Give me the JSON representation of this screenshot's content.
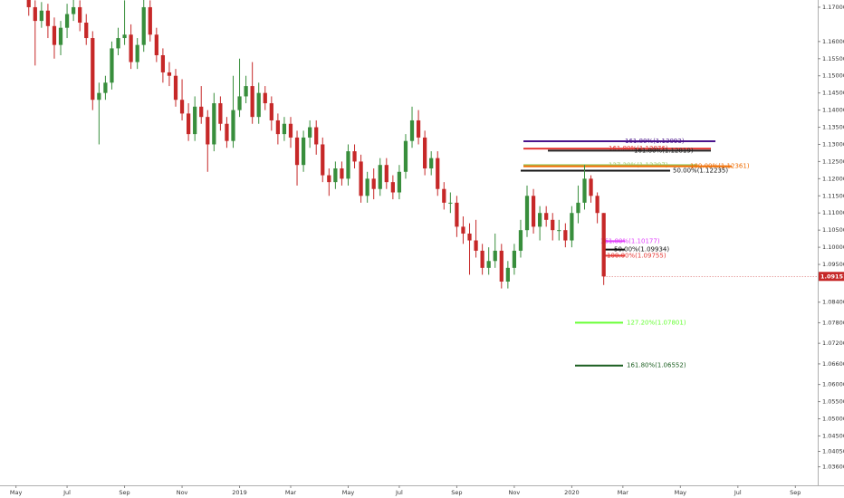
{
  "chart_data": {
    "type": "candlestick",
    "up_color": "#388e3c",
    "down_color": "#c62828",
    "xlim": [
      -4.5,
      123.5
    ],
    "ylim": [
      1.0306,
      1.1721
    ],
    "xticks": [
      {
        "value": -2,
        "label": "May"
      },
      {
        "value": 6,
        "label": "Jul"
      },
      {
        "value": 15,
        "label": "Sep"
      },
      {
        "value": 24,
        "label": "Nov"
      },
      {
        "value": 33,
        "label": "2019"
      },
      {
        "value": 41,
        "label": "Mar"
      },
      {
        "value": 50,
        "label": "May"
      },
      {
        "value": 58,
        "label": "Jul"
      },
      {
        "value": 67,
        "label": "Sep"
      },
      {
        "value": 76,
        "label": "Nov"
      },
      {
        "value": 85,
        "label": "2020"
      },
      {
        "value": 93,
        "label": "Mar"
      },
      {
        "value": 102,
        "label": "May"
      },
      {
        "value": 111,
        "label": "Jul"
      },
      {
        "value": 120,
        "label": "Sep"
      }
    ],
    "yticks": [
      {
        "value": 1.17,
        "label": "1.17000"
      },
      {
        "value": 1.16,
        "label": "1.16000"
      },
      {
        "value": 1.155,
        "label": "1.15500"
      },
      {
        "value": 1.15,
        "label": "1.15000"
      },
      {
        "value": 1.145,
        "label": "1.14500"
      },
      {
        "value": 1.14,
        "label": "1.14000"
      },
      {
        "value": 1.135,
        "label": "1.13500"
      },
      {
        "value": 1.13,
        "label": "1.13000"
      },
      {
        "value": 1.125,
        "label": "1.12500"
      },
      {
        "value": 1.12,
        "label": "1.12000"
      },
      {
        "value": 1.115,
        "label": "1.11500"
      },
      {
        "value": 1.11,
        "label": "1.11000"
      },
      {
        "value": 1.105,
        "label": "1.10500"
      },
      {
        "value": 1.1,
        "label": "1.10000"
      },
      {
        "value": 1.095,
        "label": "1.09500"
      },
      {
        "value": 1.084,
        "label": "1.08400"
      },
      {
        "value": 1.078,
        "label": "1.07800"
      },
      {
        "value": 1.072,
        "label": "1.07200"
      },
      {
        "value": 1.066,
        "label": "1.06600"
      },
      {
        "value": 1.06,
        "label": "1.06000"
      },
      {
        "value": 1.055,
        "label": "1.05500"
      },
      {
        "value": 1.05,
        "label": "1.05000"
      },
      {
        "value": 1.045,
        "label": "1.04500"
      },
      {
        "value": 1.0405,
        "label": "1.04050"
      },
      {
        "value": 1.036,
        "label": "1.03600"
      }
    ],
    "open": [
      1.174,
      1.17,
      1.166,
      1.169,
      1.1645,
      1.159,
      1.164,
      1.168,
      1.17,
      1.1655,
      1.161,
      1.143,
      1.145,
      1.148,
      1.158,
      1.161,
      1.162,
      1.154,
      1.159,
      1.17,
      1.162,
      1.156,
      1.151,
      1.15,
      1.143,
      1.139,
      1.133,
      1.141,
      1.138,
      1.13,
      1.142,
      1.136,
      1.131,
      1.14,
      1.144,
      1.147,
      1.138,
      1.145,
      1.142,
      1.137,
      1.133,
      1.136,
      1.132,
      1.124,
      1.132,
      1.135,
      1.13,
      1.121,
      1.119,
      1.123,
      1.12,
      1.128,
      1.125,
      1.115,
      1.12,
      1.117,
      1.124,
      1.119,
      1.116,
      1.122,
      1.131,
      1.137,
      1.132,
      1.123,
      1.126,
      1.117,
      1.113,
      1.113,
      1.106,
      1.104,
      1.102,
      1.099,
      1.094,
      1.096,
      1.099,
      1.09,
      1.094,
      1.099,
      1.105,
      1.115,
      1.106,
      1.11,
      1.108,
      1.105,
      1.105,
      1.102,
      1.11,
      1.113,
      1.12,
      1.115,
      1.11
    ],
    "high": [
      1.1765,
      1.172,
      1.1715,
      1.171,
      1.167,
      1.166,
      1.171,
      1.1725,
      1.172,
      1.168,
      1.163,
      1.148,
      1.15,
      1.16,
      1.164,
      1.172,
      1.165,
      1.161,
      1.174,
      1.172,
      1.164,
      1.158,
      1.154,
      1.152,
      1.149,
      1.142,
      1.144,
      1.147,
      1.14,
      1.145,
      1.144,
      1.138,
      1.15,
      1.155,
      1.15,
      1.154,
      1.148,
      1.147,
      1.144,
      1.139,
      1.138,
      1.138,
      1.134,
      1.134,
      1.137,
      1.137,
      1.132,
      1.123,
      1.125,
      1.125,
      1.13,
      1.13,
      1.127,
      1.122,
      1.123,
      1.126,
      1.126,
      1.121,
      1.124,
      1.133,
      1.141,
      1.14,
      1.134,
      1.128,
      1.128,
      1.119,
      1.116,
      1.115,
      1.109,
      1.107,
      1.108,
      1.101,
      1.1,
      1.104,
      1.101,
      1.096,
      1.101,
      1.108,
      1.118,
      1.117,
      1.112,
      1.112,
      1.11,
      1.108,
      1.107,
      1.112,
      1.118,
      1.124,
      1.121,
      1.116,
      1.11
    ],
    "low": [
      1.1675,
      1.153,
      1.164,
      1.161,
      1.155,
      1.156,
      1.161,
      1.166,
      1.163,
      1.159,
      1.14,
      1.13,
      1.143,
      1.146,
      1.156,
      1.159,
      1.152,
      1.152,
      1.157,
      1.16,
      1.154,
      1.148,
      1.147,
      1.141,
      1.137,
      1.131,
      1.131,
      1.136,
      1.122,
      1.128,
      1.134,
      1.129,
      1.129,
      1.138,
      1.142,
      1.136,
      1.136,
      1.14,
      1.134,
      1.13,
      1.131,
      1.129,
      1.118,
      1.122,
      1.129,
      1.127,
      1.119,
      1.115,
      1.117,
      1.118,
      1.118,
      1.123,
      1.113,
      1.113,
      1.114,
      1.115,
      1.117,
      1.114,
      1.114,
      1.12,
      1.129,
      1.13,
      1.121,
      1.121,
      1.115,
      1.111,
      1.11,
      1.103,
      1.101,
      1.092,
      1.097,
      1.092,
      1.092,
      1.094,
      1.088,
      1.088,
      1.092,
      1.097,
      1.103,
      1.104,
      1.102,
      1.106,
      1.102,
      1.102,
      1.1,
      1.1,
      1.107,
      1.111,
      1.113,
      1.107,
      1.089
    ],
    "close": [
      1.17,
      1.166,
      1.169,
      1.1645,
      1.159,
      1.164,
      1.168,
      1.17,
      1.1655,
      1.161,
      1.143,
      1.145,
      1.148,
      1.158,
      1.161,
      1.162,
      1.154,
      1.159,
      1.17,
      1.162,
      1.156,
      1.151,
      1.15,
      1.143,
      1.139,
      1.133,
      1.141,
      1.138,
      1.13,
      1.142,
      1.136,
      1.131,
      1.14,
      1.144,
      1.147,
      1.138,
      1.145,
      1.142,
      1.137,
      1.133,
      1.136,
      1.132,
      1.124,
      1.132,
      1.135,
      1.13,
      1.121,
      1.119,
      1.123,
      1.12,
      1.128,
      1.125,
      1.115,
      1.12,
      1.117,
      1.124,
      1.119,
      1.116,
      1.122,
      1.131,
      1.137,
      1.132,
      1.123,
      1.126,
      1.117,
      1.113,
      1.113,
      1.106,
      1.104,
      1.102,
      1.099,
      1.094,
      1.096,
      1.099,
      1.09,
      1.094,
      1.099,
      1.105,
      1.115,
      1.106,
      1.11,
      1.108,
      1.105,
      1.105,
      1.102,
      1.11,
      1.113,
      1.12,
      1.115,
      1.11,
      1.0915
    ],
    "last_price": {
      "value": 1.09151,
      "label": "1.09151",
      "color": "#c62828"
    },
    "levels": [
      {
        "value": 1.13093,
        "label": "161.80%(1.13093)",
        "color": "#4a148c"
      },
      {
        "value": 1.12876,
        "label": "161.80%(1.12876)",
        "color": "#e53935"
      },
      {
        "value": 1.12819,
        "label": "161.80%(1.12819)",
        "color": "#222222"
      },
      {
        "value": 1.12397,
        "label": "127.20%(1.12397)",
        "color": "#9ccc65"
      },
      {
        "value": 1.12361,
        "label": "100.00%(1.12361)",
        "color": "#ef6c00"
      },
      {
        "value": 1.12235,
        "label": "50.00%(1.12235)",
        "color": "#111111"
      },
      {
        "value": 1.10177,
        "label": "161.80%(1.10177)",
        "color": "#e040fb"
      },
      {
        "value": 1.09934,
        "label": "50.00%(1.09934)",
        "color": "#111111"
      },
      {
        "value": 1.09755,
        "label": "100.00%(1.09755)",
        "color": "#e53935"
      },
      {
        "value": 1.07801,
        "label": "127.20%(1.07801)",
        "color": "#66ff33"
      },
      {
        "value": 1.06552,
        "label": "161.80%(1.06552)",
        "color": "#1b5e20"
      }
    ]
  }
}
